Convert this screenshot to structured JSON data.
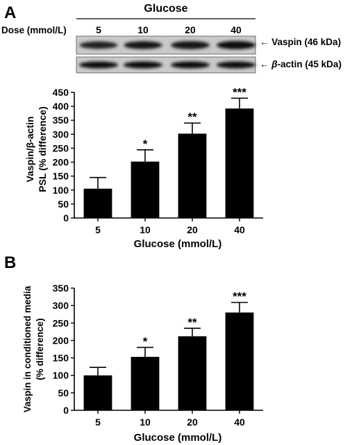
{
  "figure": {
    "panel_a_letter": "A",
    "panel_b_letter": "B",
    "blot": {
      "group_label": "Glucose",
      "dose_label": "Dose (mmol/L)",
      "doses": [
        "5",
        "10",
        "20",
        "40"
      ],
      "bands": [
        {
          "label": "Vaspin (46 kDa)",
          "intensity": [
            0.78,
            0.86,
            0.93,
            0.97
          ]
        },
        {
          "label_symbol": "β",
          "label_rest": "-actin (45 kDa)",
          "intensity": [
            1.0,
            1.0,
            1.0,
            1.0
          ]
        }
      ]
    }
  },
  "chart_data": [
    {
      "panel": "A",
      "type": "bar",
      "categories": [
        "5",
        "10",
        "20",
        "40"
      ],
      "values": [
        105,
        202,
        302,
        392
      ],
      "errors": [
        40,
        42,
        38,
        37
      ],
      "significance": [
        "",
        "*",
        "**",
        "***"
      ],
      "xlabel": "Glucose (mmol/L)",
      "ylabel_line1": "Vaspin/β-actin",
      "ylabel_line2": "PSL (% difference)",
      "ylim": [
        0,
        450
      ],
      "yticks": [
        0,
        50,
        100,
        150,
        200,
        250,
        300,
        350,
        400,
        450
      ],
      "bar_color": "#000000",
      "grid": false
    },
    {
      "panel": "B",
      "type": "bar",
      "categories": [
        "5",
        "10",
        "20",
        "40"
      ],
      "values": [
        100,
        153,
        212,
        280
      ],
      "errors": [
        23,
        27,
        23,
        29
      ],
      "significance": [
        "",
        "*",
        "**",
        "***"
      ],
      "xlabel": "Glucose (mmol/L)",
      "ylabel_line1": "Vaspin in conditioned media",
      "ylabel_line2": "(% difference)",
      "ylim": [
        0,
        350
      ],
      "yticks": [
        0,
        50,
        100,
        150,
        200,
        250,
        300,
        350
      ],
      "bar_color": "#000000",
      "grid": false
    }
  ]
}
